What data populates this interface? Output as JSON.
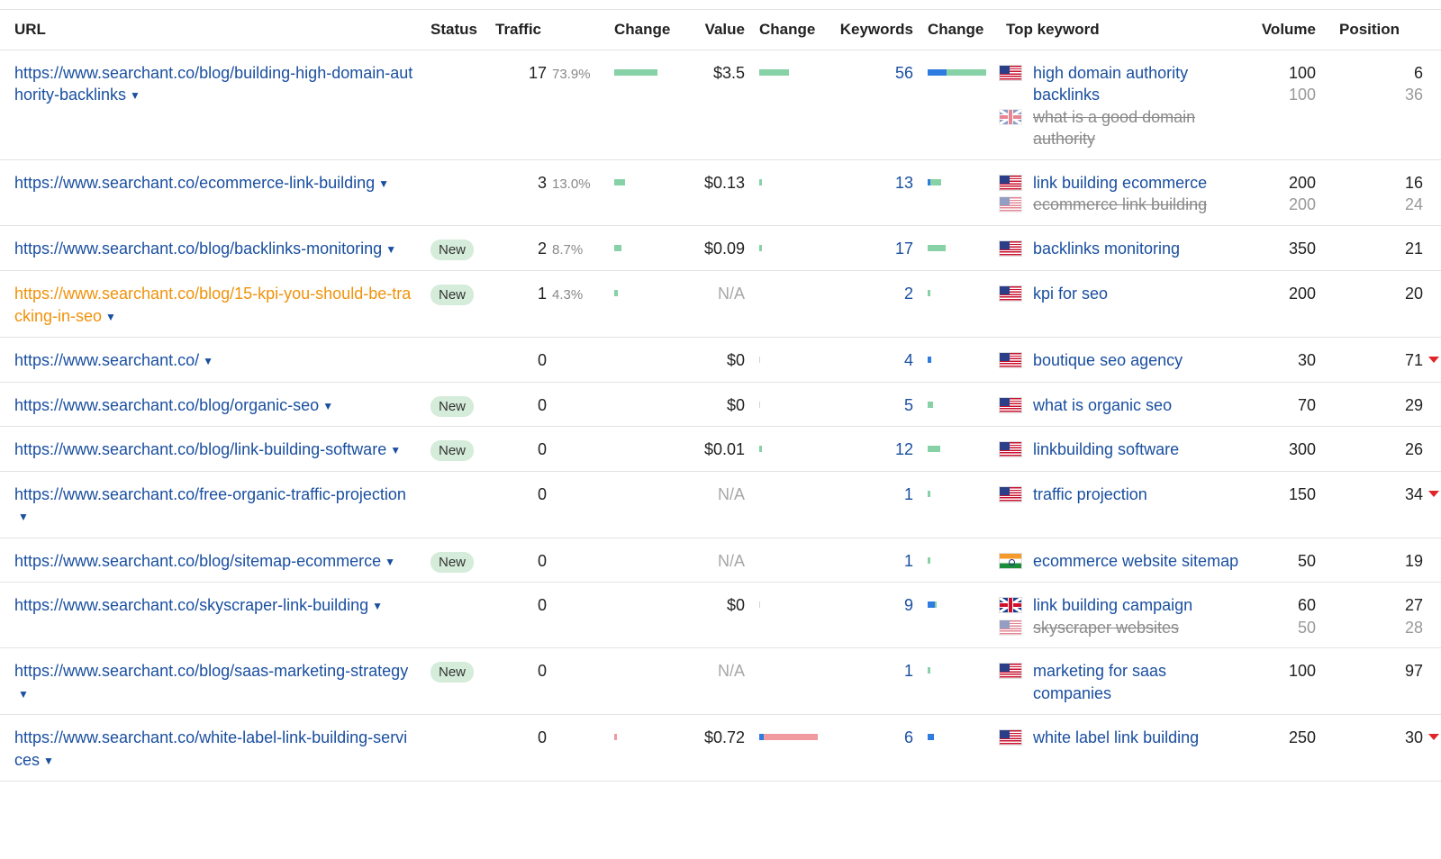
{
  "headers": {
    "url": "URL",
    "status": "Status",
    "traffic": "Traffic",
    "change": "Change",
    "value": "Value",
    "keywords": "Keywords",
    "top_keyword": "Top keyword",
    "volume": "Volume",
    "position": "Position"
  },
  "colors": {
    "link": "#1a4fa0",
    "highlight_link": "#f0920a",
    "green_bar": "#86d1a6",
    "red_bar": "#f09aa0",
    "blue_bar": "#2f7ce0",
    "badge_new": "#d4ecd9",
    "badge_lost": "#f5c6c6",
    "decline_arrow": "#e0242a"
  },
  "rows": [
    {
      "url": "https://www.searchant.co/blog/building-high-domain-authority-backlinks",
      "status": "",
      "traffic": "17",
      "traffic_pct": "73.9%",
      "traffic_change_share": 0.739,
      "traffic_change_dir": "up",
      "value": "$3.5",
      "value_change_share": 0.5,
      "value_change_dir": "up",
      "keywords": "56",
      "kw_change_share": 1.0,
      "kw_change_blue_share": 0.33,
      "top_keywords": [
        {
          "flag": "us-flag-icon",
          "text": "high domain authority backlinks",
          "struck": false,
          "volume": "100",
          "position": "6"
        },
        {
          "flag": "uk-flag-icon",
          "text": "what is a good domain authority",
          "struck": true,
          "volume": "100",
          "position": "36"
        }
      ]
    },
    {
      "url": "https://www.searchant.co/ecommerce-link-building",
      "status": "",
      "traffic": "3",
      "traffic_pct": "13.0%",
      "traffic_change_share": 0.18,
      "traffic_change_dir": "up",
      "value": "$0.13",
      "value_change_share": 0.02,
      "value_change_dir": "up",
      "keywords": "13",
      "kw_change_share": 0.23,
      "kw_change_blue_share": 0.03,
      "top_keywords": [
        {
          "flag": "us-flag-icon",
          "text": "link building ecommerce",
          "struck": false,
          "volume": "200",
          "position": "16"
        },
        {
          "flag": "us-flag-icon",
          "text": "ecommerce link building",
          "struck": true,
          "volume": "200",
          "position": "24"
        }
      ]
    },
    {
      "url": "https://www.searchant.co/blog/backlinks-monitoring",
      "status": "New",
      "traffic": "2",
      "traffic_pct": "8.7%",
      "traffic_change_share": 0.12,
      "traffic_change_dir": "up",
      "value": "$0.09",
      "value_change_share": 0.01,
      "value_change_dir": "up",
      "keywords": "17",
      "kw_change_share": 0.3,
      "kw_change_blue_share": 0,
      "top_keywords": [
        {
          "flag": "us-flag-icon",
          "text": "backlinks monitoring",
          "struck": false,
          "volume": "350",
          "position": "21"
        }
      ]
    },
    {
      "url": "https://www.searchant.co/blog/15-kpi-you-should-be-tracking-in-seo",
      "highlight": true,
      "status": "New",
      "traffic": "1",
      "traffic_pct": "4.3%",
      "traffic_change_share": 0.06,
      "traffic_change_dir": "up",
      "value": "N/A",
      "value_change_share": 0,
      "value_change_dir": "none",
      "keywords": "2",
      "kw_change_share": 0.02,
      "kw_change_blue_share": 0,
      "top_keywords": [
        {
          "flag": "us-flag-icon",
          "text": "kpi for seo",
          "struck": false,
          "volume": "200",
          "position": "20"
        }
      ]
    },
    {
      "url": "https://www.searchant.co/",
      "status": "",
      "traffic": "0",
      "traffic_pct": "",
      "traffic_change_share": 0,
      "traffic_change_dir": "none",
      "value": "$0",
      "value_change_share": 0,
      "value_change_dir": "none",
      "keywords": "4",
      "kw_change_share": 0.06,
      "kw_change_blue_share": 0.06,
      "top_keywords": [
        {
          "flag": "us-flag-icon",
          "text": "boutique seo agency",
          "struck": false,
          "volume": "30",
          "position": "71",
          "declined": true
        }
      ]
    },
    {
      "url": "https://www.searchant.co/blog/organic-seo",
      "status": "New",
      "traffic": "0",
      "traffic_pct": "",
      "traffic_change_share": 0,
      "traffic_change_dir": "none",
      "value": "$0",
      "value_change_share": 0,
      "value_change_dir": "none",
      "keywords": "5",
      "kw_change_share": 0.09,
      "kw_change_blue_share": 0,
      "top_keywords": [
        {
          "flag": "us-flag-icon",
          "text": "what is organic seo",
          "struck": false,
          "volume": "70",
          "position": "29"
        }
      ]
    },
    {
      "url": "https://www.searchant.co/blog/link-building-software",
      "status": "New",
      "traffic": "0",
      "traffic_pct": "",
      "traffic_change_share": 0,
      "traffic_change_dir": "none",
      "value": "$0.01",
      "value_change_share": 0.01,
      "value_change_dir": "up",
      "keywords": "12",
      "kw_change_share": 0.21,
      "kw_change_blue_share": 0,
      "top_keywords": [
        {
          "flag": "us-flag-icon",
          "text": "linkbuilding software",
          "struck": false,
          "volume": "300",
          "position": "26"
        }
      ]
    },
    {
      "url": "https://www.searchant.co/free-organic-traffic-projection",
      "status": "",
      "traffic": "0",
      "traffic_pct": "",
      "traffic_change_share": 0,
      "traffic_change_dir": "none",
      "value": "N/A",
      "value_change_share": 0,
      "value_change_dir": "none",
      "keywords": "1",
      "kw_change_share": 0.01,
      "kw_change_blue_share": 0,
      "top_keywords": [
        {
          "flag": "us-flag-icon",
          "text": "traffic projection",
          "struck": false,
          "volume": "150",
          "position": "34",
          "declined": true
        }
      ]
    },
    {
      "url": "https://www.searchant.co/blog/sitemap-ecommerce",
      "status": "New",
      "traffic": "0",
      "traffic_pct": "",
      "traffic_change_share": 0,
      "traffic_change_dir": "none",
      "value": "N/A",
      "value_change_share": 0,
      "value_change_dir": "none",
      "keywords": "1",
      "kw_change_share": 0.01,
      "kw_change_blue_share": 0,
      "top_keywords": [
        {
          "flag": "india-flag-icon",
          "text": "ecommerce website sitemap",
          "struck": false,
          "volume": "50",
          "position": "19"
        }
      ]
    },
    {
      "url": "https://www.searchant.co/skyscraper-link-building",
      "status": "",
      "traffic": "0",
      "traffic_pct": "",
      "traffic_change_share": 0,
      "traffic_change_dir": "none",
      "value": "$0",
      "value_change_share": 0,
      "value_change_dir": "none",
      "keywords": "9",
      "kw_change_share": 0.16,
      "kw_change_blue_share": 0.12,
      "top_keywords": [
        {
          "flag": "uk-flag-icon",
          "text": "link building campaign",
          "struck": false,
          "volume": "60",
          "position": "27"
        },
        {
          "flag": "us-flag-icon",
          "text": "skyscraper websites",
          "struck": true,
          "volume": "50",
          "position": "28"
        }
      ]
    },
    {
      "url": "https://www.searchant.co/blog/saas-marketing-strategy",
      "status": "New",
      "traffic": "0",
      "traffic_pct": "",
      "traffic_change_share": 0,
      "traffic_change_dir": "none",
      "value": "N/A",
      "value_change_share": 0,
      "value_change_dir": "none",
      "keywords": "1",
      "kw_change_share": 0.01,
      "kw_change_blue_share": 0,
      "top_keywords": [
        {
          "flag": "us-flag-icon",
          "text": "marketing for saas companies",
          "struck": false,
          "volume": "100",
          "position": "97"
        }
      ]
    },
    {
      "url": "https://www.searchant.co/white-label-link-building-services",
      "status": "",
      "traffic": "0",
      "traffic_pct": "",
      "traffic_change_share": 0.05,
      "traffic_change_dir": "down",
      "value": "$0.72",
      "value_change_share": 1.0,
      "value_change_dir": "down",
      "keywords": "6",
      "kw_change_share": 0.1,
      "kw_change_blue_share": 0.1,
      "top_keywords": [
        {
          "flag": "us-flag-icon",
          "text": "white label link building",
          "struck": false,
          "volume": "250",
          "position": "30",
          "declined": true
        }
      ]
    }
  ]
}
